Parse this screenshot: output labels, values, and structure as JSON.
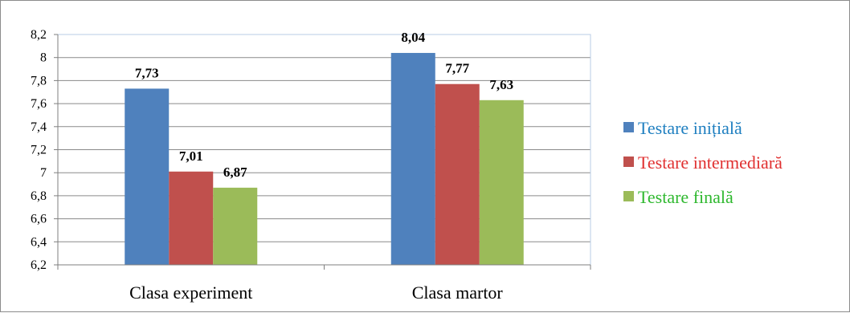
{
  "chart_data": {
    "type": "bar",
    "categories": [
      "Clasa experiment",
      "Clasa martor"
    ],
    "series": [
      {
        "name": "Testare inițială",
        "values": [
          7.73,
          8.04
        ],
        "labels": [
          "7,73",
          "8,04"
        ],
        "color": "#4f81bd"
      },
      {
        "name": "Testare intermediară",
        "values": [
          7.01,
          7.77
        ],
        "labels": [
          "7,01",
          "7,77"
        ],
        "color": "#c0504d"
      },
      {
        "name": "Testare finală",
        "values": [
          6.87,
          7.63
        ],
        "labels": [
          "6,87",
          "7,63"
        ],
        "color": "#9bbb59"
      }
    ],
    "ylim": [
      6.2,
      8.2
    ],
    "yticks": [
      6.2,
      6.4,
      6.6,
      6.8,
      7,
      7.2,
      7.4,
      7.6,
      7.8,
      8,
      8.2
    ],
    "ytick_labels": [
      "6,2",
      "6,4",
      "6,6",
      "6,8",
      "7",
      "7,2",
      "7,4",
      "7,6",
      "7,8",
      "8",
      "8,2"
    ],
    "legend_position": "right",
    "legend_text_colors": [
      "#1f7fc0",
      "#e03030",
      "#2eb82e"
    ],
    "grid": true,
    "title": "",
    "xlabel": "",
    "ylabel": ""
  }
}
